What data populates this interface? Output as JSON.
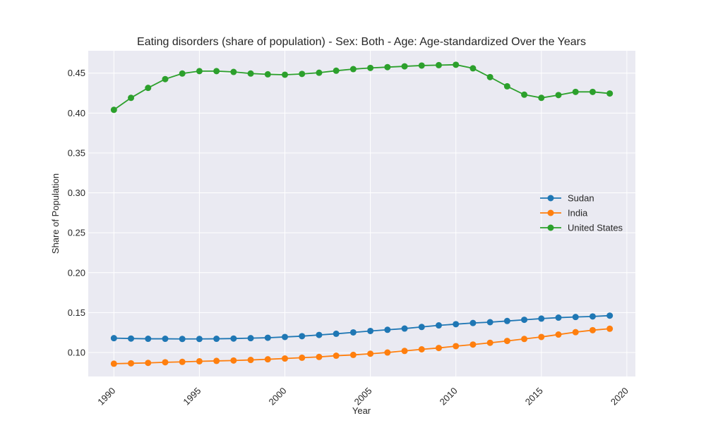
{
  "chart_data": {
    "type": "line",
    "title": "Eating disorders (share of population) - Sex: Both - Age: Age-standardized Over the Years",
    "xlabel": "Year",
    "ylabel": "Share of Population",
    "xlim": [
      1988.5,
      2020.5
    ],
    "ylim": [
      0.07,
      0.478
    ],
    "xticks": [
      1990,
      1995,
      2000,
      2005,
      2010,
      2015,
      2020
    ],
    "yticks": [
      0.1,
      0.15,
      0.2,
      0.25,
      0.3,
      0.35,
      0.4,
      0.45
    ],
    "ytick_labels": [
      "0.10",
      "0.15",
      "0.20",
      "0.25",
      "0.30",
      "0.35",
      "0.40",
      "0.45"
    ],
    "grid": true,
    "legend_position": "center-right",
    "x": [
      1990,
      1991,
      1992,
      1993,
      1994,
      1995,
      1996,
      1997,
      1998,
      1999,
      2000,
      2001,
      2002,
      2003,
      2004,
      2005,
      2006,
      2007,
      2008,
      2009,
      2010,
      2011,
      2012,
      2013,
      2014,
      2015,
      2016,
      2017,
      2018,
      2019
    ],
    "series": [
      {
        "name": "Sudan",
        "color": "#1f77b4",
        "values": [
          0.118,
          0.1175,
          0.1172,
          0.1172,
          0.117,
          0.117,
          0.1172,
          0.1175,
          0.118,
          0.1185,
          0.1195,
          0.1205,
          0.122,
          0.1235,
          0.1252,
          0.127,
          0.1285,
          0.13,
          0.132,
          0.134,
          0.1355,
          0.137,
          0.138,
          0.1395,
          0.141,
          0.1425,
          0.1437,
          0.1445,
          0.1452,
          0.1462
        ]
      },
      {
        "name": "India",
        "color": "#ff7f0e",
        "values": [
          0.086,
          0.0865,
          0.087,
          0.0878,
          0.0883,
          0.089,
          0.0895,
          0.09,
          0.0907,
          0.0915,
          0.0925,
          0.0935,
          0.0945,
          0.096,
          0.097,
          0.0985,
          0.1,
          0.102,
          0.104,
          0.1057,
          0.108,
          0.11,
          0.1122,
          0.1145,
          0.117,
          0.1195,
          0.1225,
          0.1255,
          0.128,
          0.1298
        ]
      },
      {
        "name": "United States",
        "color": "#2ca02c",
        "values": [
          0.404,
          0.419,
          0.4315,
          0.4425,
          0.4495,
          0.4525,
          0.4525,
          0.4515,
          0.4495,
          0.4485,
          0.448,
          0.449,
          0.4505,
          0.453,
          0.455,
          0.4565,
          0.4575,
          0.4585,
          0.4595,
          0.46,
          0.4605,
          0.456,
          0.445,
          0.4335,
          0.423,
          0.419,
          0.4225,
          0.4265,
          0.4265,
          0.4245
        ]
      }
    ]
  }
}
